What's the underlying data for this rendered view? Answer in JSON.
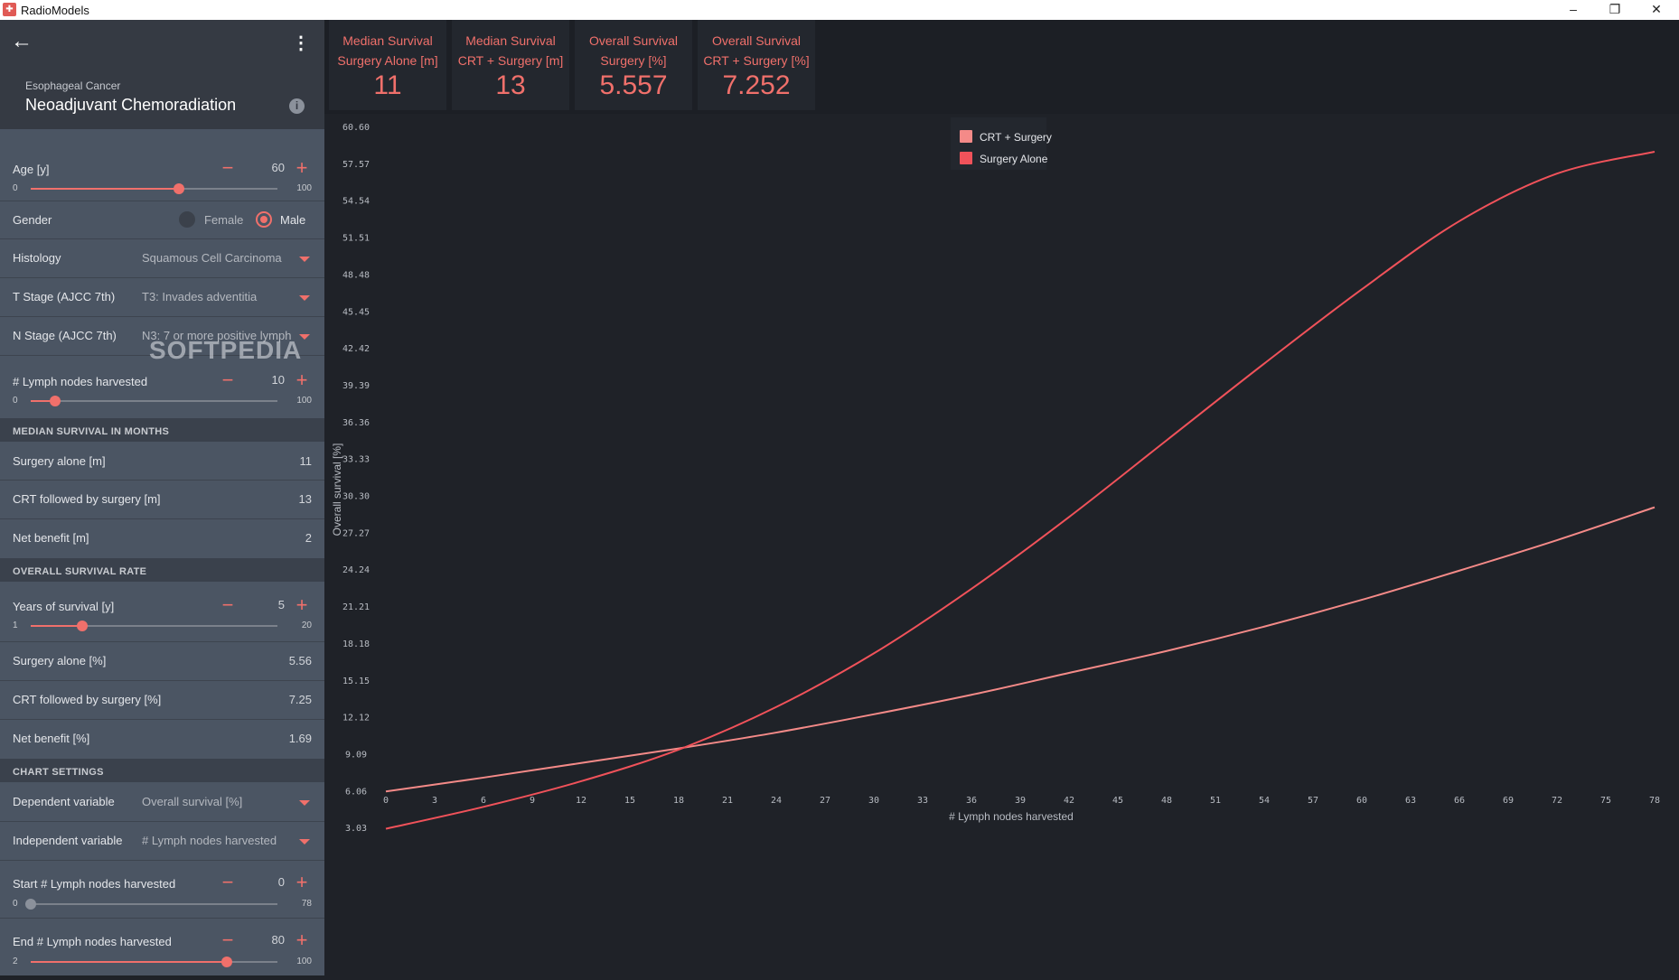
{
  "window": {
    "title": "RadioModels",
    "app_icon": "radiomodels-icon",
    "controls": [
      "minimize",
      "restore",
      "close"
    ]
  },
  "header": {
    "subtitle": "Esophageal Cancer",
    "title": "Neoadjuvant Chemoradiation"
  },
  "inputs": {
    "age": {
      "label": "Age [y]",
      "value": "60",
      "min": "0",
      "max": "100",
      "fraction": 0.6
    },
    "gender": {
      "label": "Gender",
      "options": [
        "Female",
        "Male"
      ],
      "selected": "Male"
    },
    "histology": {
      "label": "Histology",
      "value": "Squamous Cell Carcinoma"
    },
    "t_stage": {
      "label": "T Stage (AJCC 7th)",
      "value": "T3: Invades adventitia"
    },
    "n_stage": {
      "label": "N Stage (AJCC 7th)",
      "value": "N3: 7 or more positive lymph"
    },
    "lymph": {
      "label": "# Lymph nodes harvested",
      "value": "10",
      "min": "0",
      "max": "100",
      "fraction": 0.1
    }
  },
  "median_section": {
    "title": "MEDIAN SURVIVAL IN MONTHS",
    "rows": [
      {
        "label": "Surgery alone [m]",
        "value": "11"
      },
      {
        "label": "CRT followed by surgery [m]",
        "value": "13"
      },
      {
        "label": "Net benefit [m]",
        "value": "2"
      }
    ]
  },
  "overall_section": {
    "title": "OVERALL SURVIVAL RATE",
    "years": {
      "label": "Years of survival [y]",
      "value": "5",
      "min": "1",
      "max": "20",
      "fraction": 0.2105
    },
    "rows": [
      {
        "label": "Surgery alone [%]",
        "value": "5.56"
      },
      {
        "label": "CRT followed by surgery [%]",
        "value": "7.25"
      },
      {
        "label": "Net benefit [%]",
        "value": "1.69"
      }
    ]
  },
  "chart_settings": {
    "title": "CHART SETTINGS",
    "dependent": {
      "label": "Dependent variable",
      "value": "Overall survival [%]"
    },
    "independent": {
      "label": "Independent variable",
      "value": "# Lymph nodes harvested"
    },
    "start": {
      "label": "Start # Lymph nodes harvested",
      "value": "0",
      "min": "0",
      "max": "78",
      "fraction": 0.0
    },
    "end": {
      "label": "End # Lymph nodes harvested",
      "value": "80",
      "min": "2",
      "max": "100",
      "fraction": 0.796
    }
  },
  "watermark": "SOFTPEDIA",
  "cards": [
    {
      "line1": "Median Survival",
      "line2": "Surgery Alone [m]",
      "value": "11"
    },
    {
      "line1": "Median Survival",
      "line2": "CRT + Surgery [m]",
      "value": "13"
    },
    {
      "line1": "Overall Survival",
      "line2": "Surgery [%]",
      "value": "5.557"
    },
    {
      "line1": "Overall Survival",
      "line2": "CRT + Surgery [%]",
      "value": "7.252"
    }
  ],
  "colors": {
    "accent": "#f0706b",
    "crt_series": "#f48a88",
    "surgery_series": "#f0525a"
  },
  "chart_data": {
    "type": "line",
    "xlabel": "# Lymph nodes harvested",
    "ylabel": "Overall survival [%]",
    "x_ticks": [
      "0",
      "3",
      "6",
      "9",
      "12",
      "15",
      "18",
      "21",
      "24",
      "27",
      "30",
      "33",
      "36",
      "39",
      "42",
      "45",
      "48",
      "51",
      "54",
      "57",
      "60",
      "63",
      "66",
      "69",
      "72",
      "75",
      "78"
    ],
    "y_ticks": [
      "3.03",
      "6.06",
      "9.09",
      "12.12",
      "15.15",
      "18.18",
      "21.21",
      "24.24",
      "27.27",
      "30.30",
      "33.33",
      "36.36",
      "39.39",
      "42.42",
      "45.45",
      "48.48",
      "51.51",
      "54.54",
      "57.57",
      "60.60"
    ],
    "xlim": [
      0,
      78
    ],
    "ylim": [
      0,
      60.6
    ],
    "legend": "top-center",
    "series": [
      {
        "name": "CRT + Surgery",
        "x": [
          0,
          6,
          12,
          18,
          24,
          30,
          36,
          42,
          48,
          54,
          60,
          66,
          72,
          78
        ],
        "y": [
          6.06,
          7.2,
          8.4,
          9.6,
          10.9,
          12.4,
          14.0,
          15.8,
          17.6,
          19.6,
          21.8,
          24.2,
          26.7,
          29.4
        ]
      },
      {
        "name": "Surgery Alone",
        "x": [
          0,
          6,
          12,
          18,
          24,
          30,
          36,
          42,
          48,
          54,
          60,
          66,
          72,
          78
        ],
        "y": [
          3.0,
          4.8,
          6.9,
          9.5,
          13.0,
          17.4,
          22.7,
          28.6,
          34.9,
          41.2,
          47.3,
          52.9,
          56.8,
          58.6
        ]
      }
    ]
  }
}
